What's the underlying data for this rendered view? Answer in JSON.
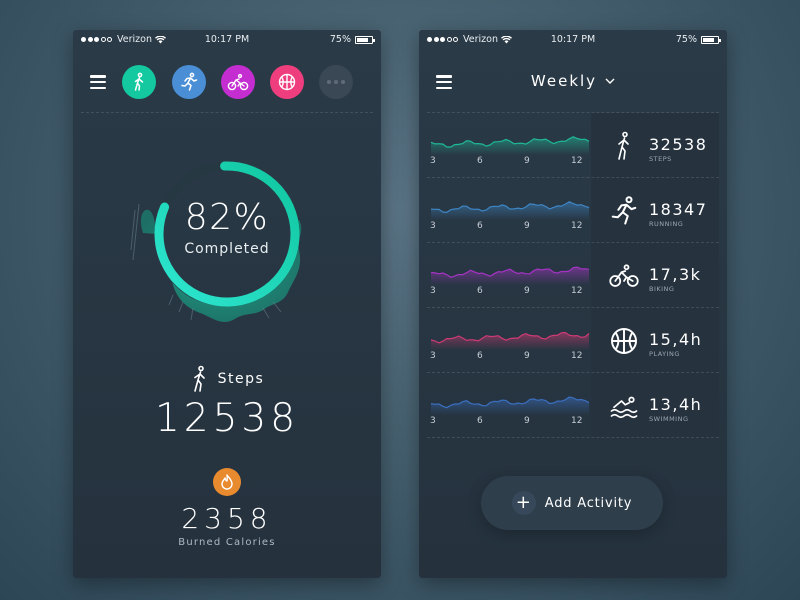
{
  "status_bar": {
    "carrier": "Verizon",
    "time": "10:17 PM",
    "battery": "75%",
    "battery_level": 0.75
  },
  "left": {
    "activities": [
      {
        "name": "walking",
        "icon": "walking-icon",
        "color": "#14c8a0"
      },
      {
        "name": "running",
        "icon": "running-icon",
        "color": "#4a8fd6"
      },
      {
        "name": "biking",
        "icon": "bike-icon",
        "color": "#c42ed1"
      },
      {
        "name": "playing",
        "icon": "basketball-icon",
        "color": "#ee3e7e"
      },
      {
        "name": "more",
        "icon": "more-icon",
        "color": "#3a4754"
      }
    ],
    "progress": {
      "percent_label": "82%",
      "completed_label": "Completed",
      "value": 0.82
    },
    "steps_label": "Steps",
    "steps_value": "12538",
    "calories_value": "2358",
    "calories_label": "Burned Calories"
  },
  "right": {
    "period": "Weekly",
    "x_ticks": [
      "3",
      "6",
      "9",
      "12"
    ],
    "rows": [
      {
        "value": "32538",
        "label": "STEPS",
        "icon": "walking-icon",
        "color": "#1fb996"
      },
      {
        "value": "18347",
        "label": "RUNNING",
        "icon": "running-icon",
        "color": "#3d86c6"
      },
      {
        "value": "17,3k",
        "label": "BIKING",
        "icon": "bike-icon",
        "color": "#a634c4"
      },
      {
        "value": "15,4h",
        "label": "PLAYING",
        "icon": "basketball-icon",
        "color": "#d03a74"
      },
      {
        "value": "13,4h",
        "label": "SWIMMING",
        "icon": "swimming-icon",
        "color": "#3a6fc0"
      }
    ],
    "add_activity": "Add Activity"
  }
}
